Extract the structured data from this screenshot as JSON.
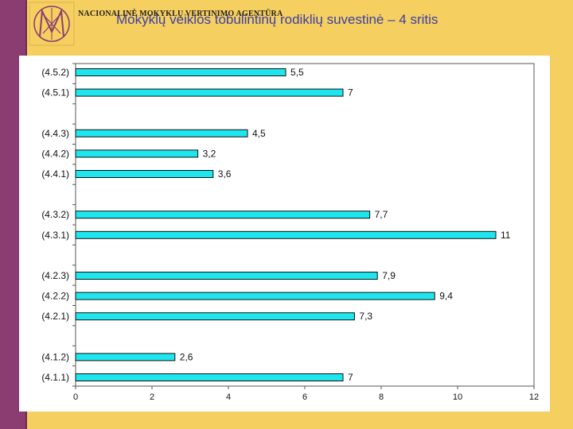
{
  "header": {
    "agency": "NACIONALINĖ MOKYKLŲ VERTINIMO AGENTŪRA",
    "title": "Mokyklų veiklos tobulintinų rodiklių suvestinė – 4 sritis"
  },
  "colors": {
    "bar_fill": "#1ee6ee",
    "bar_stroke": "#111111",
    "background": "#f5cf5f",
    "stripe": "#8b3d72",
    "title_text": "#3b3fa8"
  },
  "chart_data": {
    "type": "bar",
    "orientation": "horizontal",
    "title": "",
    "xlabel": "",
    "ylabel": "",
    "xlim": [
      0,
      12
    ],
    "x_ticks": [
      "0",
      "2",
      "4",
      "6",
      "8",
      "10",
      "12"
    ],
    "grid": false,
    "legend": "none",
    "categories": [
      "(4.5.2)",
      "(4.5.1)",
      "(4.4.3)",
      "(4.4.2)",
      "(4.4.1)",
      "(4.3.2)",
      "(4.3.1)",
      "(4.2.3)",
      "(4.2.2)",
      "(4.2.1)",
      "(4.1.2)",
      "(4.1.1)"
    ],
    "values": [
      5.5,
      7,
      4.5,
      3.2,
      3.6,
      7.7,
      11,
      7.9,
      9.4,
      7.3,
      2.6,
      7
    ],
    "value_labels": [
      "5,5",
      "7",
      "4,5",
      "3,2",
      "3,6",
      "7,7",
      "11",
      "7,9",
      "9,4",
      "7,3",
      "2,6",
      "7"
    ]
  }
}
